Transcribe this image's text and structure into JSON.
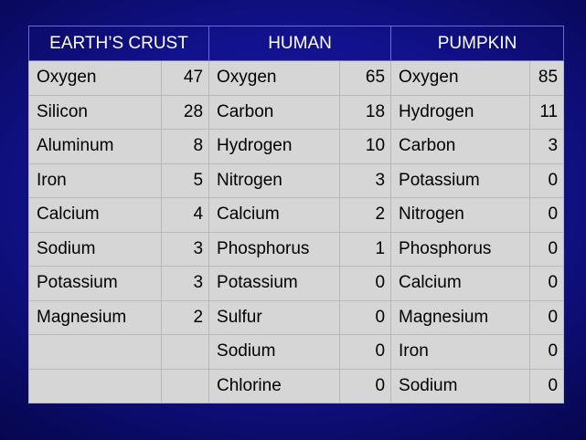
{
  "headers": {
    "earth": "EARTH’S CRUST",
    "human": "HUMAN",
    "pumpkin": "PUMPKIN"
  },
  "rows": [
    {
      "earth_el": "Oxygen",
      "earth_val": "47",
      "human_el": "Oxygen",
      "human_val": "65",
      "pumpkin_el": "Oxygen",
      "pumpkin_val": "85"
    },
    {
      "earth_el": "Silicon",
      "earth_val": "28",
      "human_el": "Carbon",
      "human_val": "18",
      "pumpkin_el": "Hydrogen",
      "pumpkin_val": "11"
    },
    {
      "earth_el": "Aluminum",
      "earth_val": "8",
      "human_el": "Hydrogen",
      "human_val": "10",
      "pumpkin_el": "Carbon",
      "pumpkin_val": "3"
    },
    {
      "earth_el": "Iron",
      "earth_val": "5",
      "human_el": "Nitrogen",
      "human_val": "3",
      "pumpkin_el": "Potassium",
      "pumpkin_val": "0"
    },
    {
      "earth_el": "Calcium",
      "earth_val": "4",
      "human_el": "Calcium",
      "human_val": "2",
      "pumpkin_el": "Nitrogen",
      "pumpkin_val": "0"
    },
    {
      "earth_el": "Sodium",
      "earth_val": "3",
      "human_el": "Phosphorus",
      "human_val": "1",
      "pumpkin_el": "Phosphorus",
      "pumpkin_val": "0"
    },
    {
      "earth_el": "Potassium",
      "earth_val": "3",
      "human_el": "Potassium",
      "human_val": "0",
      "pumpkin_el": "Calcium",
      "pumpkin_val": "0"
    },
    {
      "earth_el": "Magnesium",
      "earth_val": "2",
      "human_el": "Sulfur",
      "human_val": "0",
      "pumpkin_el": "Magnesium",
      "pumpkin_val": "0"
    },
    {
      "earth_el": "",
      "earth_val": "",
      "human_el": "Sodium",
      "human_val": "0",
      "pumpkin_el": "Iron",
      "pumpkin_val": "0"
    },
    {
      "earth_el": "",
      "earth_val": "",
      "human_el": "Chlorine",
      "human_val": "0",
      "pumpkin_el": "Sodium",
      "pumpkin_val": "0"
    }
  ]
}
